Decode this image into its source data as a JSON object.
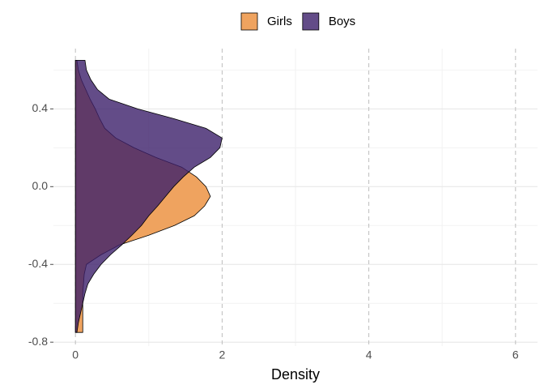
{
  "chart_data": {
    "type": "density",
    "orientation": "horizontal",
    "x_label": "Density",
    "y": [
      -0.75,
      -0.7,
      -0.65,
      -0.6,
      -0.55,
      -0.5,
      -0.45,
      -0.4,
      -0.35,
      -0.3,
      -0.25,
      -0.2,
      -0.15,
      -0.1,
      -0.05,
      0,
      0.05,
      0.1,
      0.15,
      0.2,
      0.25,
      0.3,
      0.35,
      0.4,
      0.45,
      0.5,
      0.55,
      0.6,
      0.65
    ],
    "series": [
      {
        "name": "Girls",
        "color": "#efa35f",
        "opacity": 1,
        "values": [
          0.1,
          0.1,
          0.1,
          0.1,
          0.1,
          0.11,
          0.12,
          0.15,
          0.35,
          0.6,
          1.0,
          1.35,
          1.62,
          1.76,
          1.84,
          1.78,
          1.65,
          1.45,
          1.1,
          0.8,
          0.55,
          0.4,
          0.33,
          0.27,
          0.2,
          0.14,
          0.08,
          0.04,
          0.02
        ]
      },
      {
        "name": "Boys",
        "color": "#3c1f6a",
        "opacity": 0.8,
        "values": [
          0.02,
          0.04,
          0.07,
          0.1,
          0.13,
          0.17,
          0.25,
          0.35,
          0.48,
          0.63,
          0.77,
          0.9,
          1.0,
          1.12,
          1.23,
          1.34,
          1.47,
          1.62,
          1.84,
          1.97,
          2.0,
          1.78,
          1.34,
          0.85,
          0.46,
          0.3,
          0.21,
          0.15,
          0.13
        ]
      }
    ],
    "xlim": [
      -0.3,
      6.3
    ],
    "xticks": [
      0,
      2,
      4,
      6
    ],
    "x_minor_ticks": [
      1,
      3,
      5
    ],
    "ylim": [
      -0.82,
      0.71
    ],
    "yticks": [
      {
        "value": -0.8,
        "label": "-0.8"
      },
      {
        "value": -0.4,
        "label": "-0.4"
      },
      {
        "value": 0,
        "label": "0.0"
      },
      {
        "value": 0.4,
        "label": "0.4"
      }
    ],
    "y_minor_ticks": [
      -0.6,
      -0.2,
      0.2,
      0.6
    ],
    "grid": true,
    "legend": "top"
  }
}
